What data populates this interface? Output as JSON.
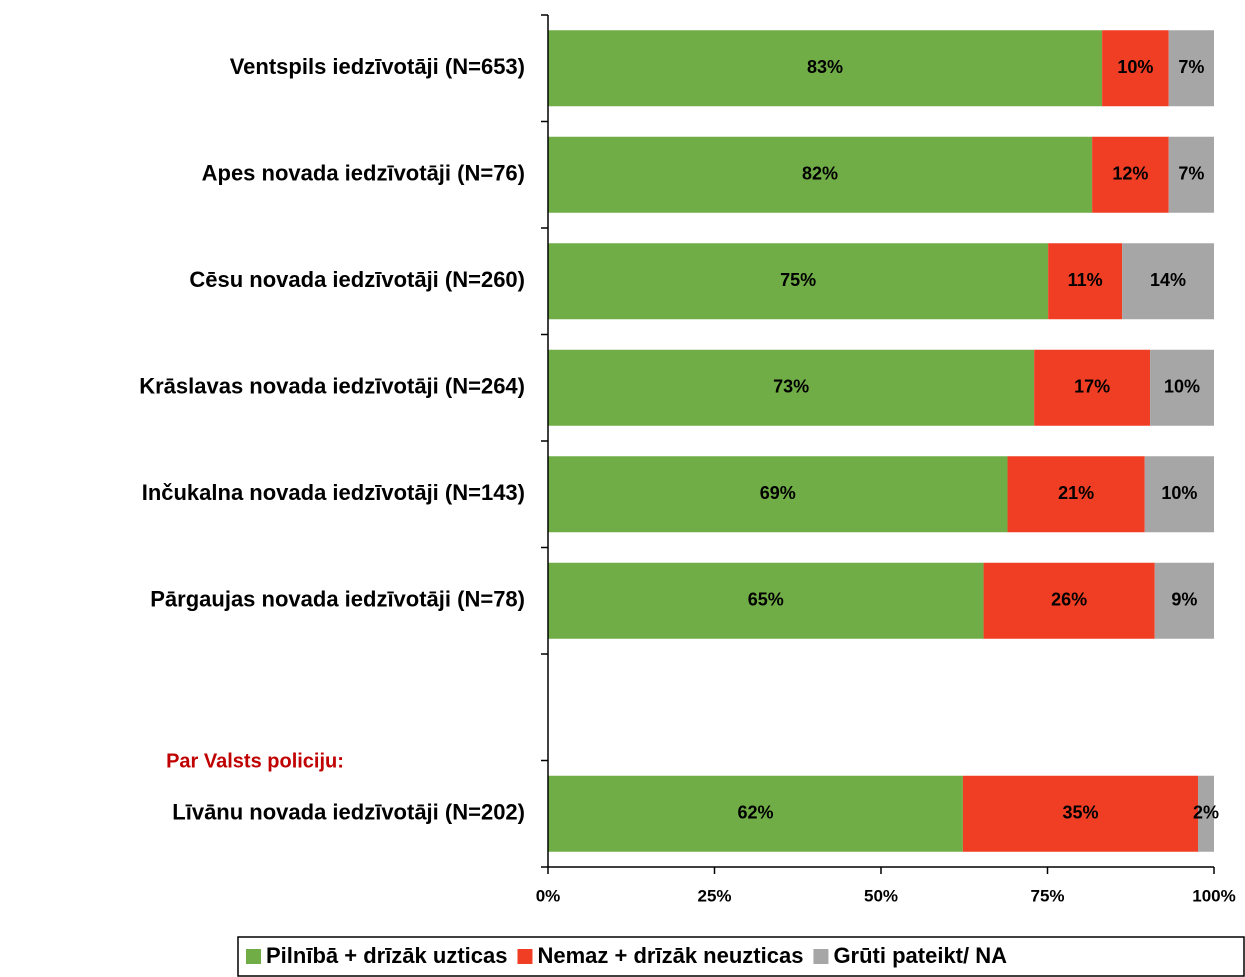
{
  "chart_data": {
    "type": "stacked-barh",
    "categories": [
      "Ventspils iedzīvotāji (N=653)",
      "Apes novada iedzīvotāji (N=76)",
      "Cēsu novada iedzīvotāji (N=260)",
      "Krāslavas novada iedzīvotāji (N=264)",
      "Inčukalna novada iedzīvotāji (N=143)",
      "Pārgaujas novada iedzīvotāji (N=78)",
      null,
      "Līvānu novada iedzīvotāji (N=202)"
    ],
    "series": [
      {
        "name": "Pilnībā + drīzāk uzticas",
        "color": "#70ad47",
        "values": [
          83.2,
          81.7,
          75.1,
          73.0,
          69.0,
          65.4,
          null,
          62.3
        ],
        "value_labels": [
          "83%",
          "82%",
          "75%",
          "73%",
          "69%",
          "65%",
          null,
          "62%"
        ]
      },
      {
        "name": "Nemaz + drīzāk neuzticas",
        "color": "#f03e24",
        "values": [
          10.0,
          11.5,
          11.1,
          17.4,
          20.6,
          25.7,
          null,
          35.3
        ],
        "value_labels": [
          "10%",
          "12%",
          "11%",
          "17%",
          "21%",
          "26%",
          null,
          "35%"
        ]
      },
      {
        "name": "Grūti pateikt/ NA",
        "color": "#a6a6a6",
        "values": [
          6.8,
          6.8,
          13.8,
          9.6,
          10.4,
          8.9,
          null,
          2.4
        ],
        "value_labels": [
          "7%",
          "7%",
          "14%",
          "10%",
          "10%",
          "9%",
          null,
          "2%"
        ]
      }
    ],
    "annotation": "Par Valsts policiju:",
    "xlim": [
      0,
      100
    ],
    "xticks": [
      {
        "value": 0,
        "label": "0%"
      },
      {
        "value": 25,
        "label": "25%"
      },
      {
        "value": 50,
        "label": "50%"
      },
      {
        "value": 75,
        "label": "75%"
      },
      {
        "value": 100,
        "label": "100%"
      }
    ],
    "legend": "bottom"
  }
}
